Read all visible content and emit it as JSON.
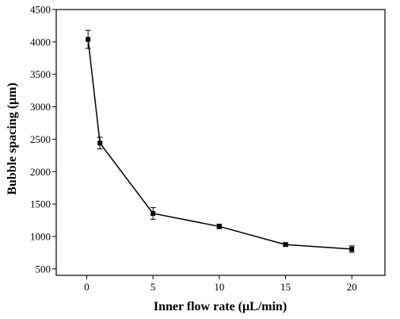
{
  "chart_data": {
    "type": "line",
    "title": "",
    "xlabel": "Inner flow rate (μL/min)",
    "ylabel": "Bubble spacing (μm)",
    "xlim": [
      -2.3,
      22.5
    ],
    "ylim": [
      400,
      4500
    ],
    "xticks": [
      0,
      5,
      10,
      15,
      20
    ],
    "yticks": [
      500,
      1000,
      1500,
      2000,
      2500,
      3000,
      3500,
      4000,
      4500
    ],
    "grid": false,
    "legend": "none",
    "series": [
      {
        "marker": "square",
        "color": "#000000",
        "points": [
          {
            "x": 0.1,
            "y": 4040,
            "err": 140
          },
          {
            "x": 1.0,
            "y": 2440,
            "err": 90
          },
          {
            "x": 5.0,
            "y": 1355,
            "err": 90
          },
          {
            "x": 10.0,
            "y": 1155,
            "err": 35
          },
          {
            "x": 15.0,
            "y": 875,
            "err": 25
          },
          {
            "x": 20.0,
            "y": 805,
            "err": 50
          }
        ]
      }
    ]
  }
}
